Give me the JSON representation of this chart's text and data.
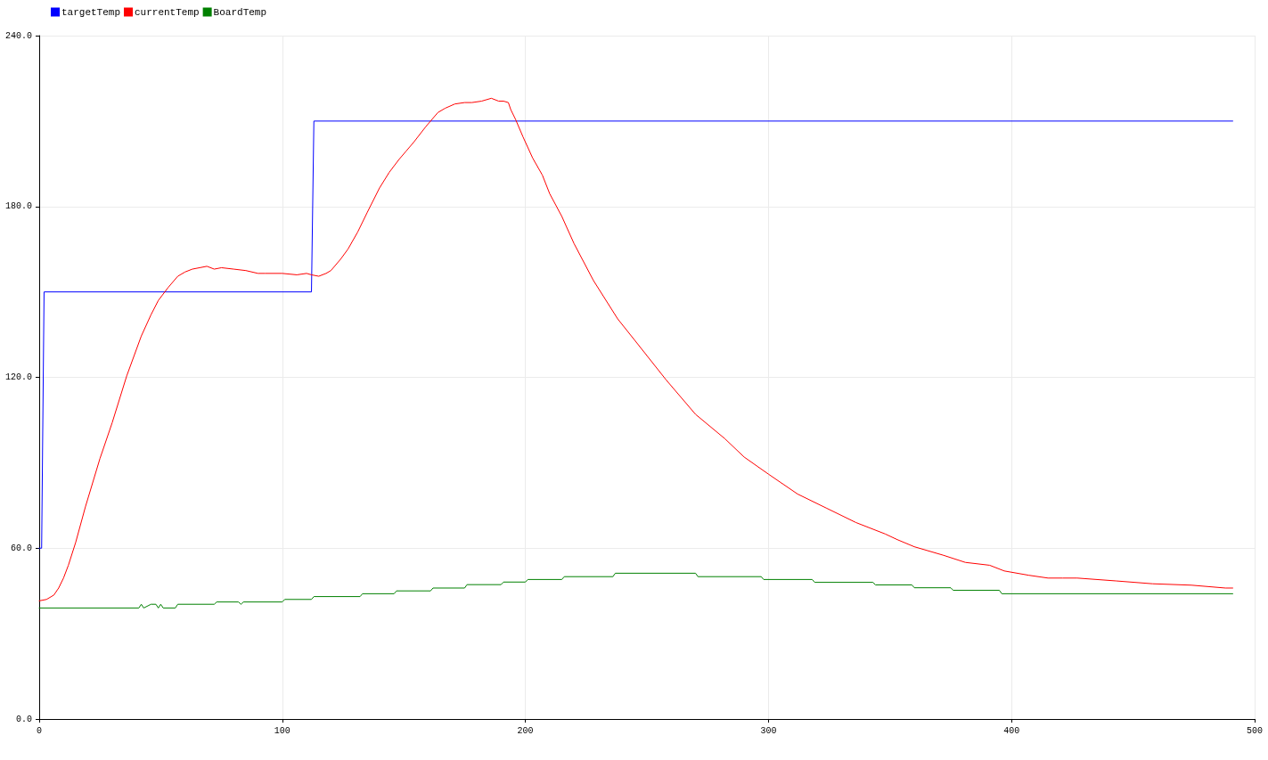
{
  "chart_data": {
    "type": "line",
    "xlim": [
      0,
      500
    ],
    "xticks": [
      0,
      100,
      200,
      300,
      400,
      500
    ],
    "ylim": [
      0,
      240
    ],
    "yticks": [
      {
        "value": 0,
        "label": "0.0"
      },
      {
        "value": 60,
        "label": "60.0"
      },
      {
        "value": 120,
        "label": "120.0"
      },
      {
        "value": 180,
        "label": "180.0"
      },
      {
        "value": 240,
        "label": "240.0"
      }
    ],
    "grid": true,
    "legend": "top left",
    "marker": "none",
    "series": [
      {
        "name": "targetTemp",
        "color": "#0000ff",
        "x": [
          0,
          1,
          2,
          112,
          113,
          491
        ],
        "values": [
          60,
          60,
          150,
          150,
          210,
          210
        ]
      },
      {
        "name": "currentTemp",
        "color": "#ff0000",
        "x": [
          0,
          3,
          6,
          8,
          10,
          12,
          15,
          19,
          25,
          30,
          36,
          42,
          46,
          49,
          53,
          57,
          60,
          63,
          66,
          69,
          72,
          75,
          80,
          85,
          90,
          93,
          100,
          106,
          110,
          112,
          115,
          118,
          120,
          124,
          127,
          131,
          135,
          140,
          144,
          148,
          151,
          154,
          159,
          164,
          167,
          171,
          175,
          178,
          182,
          186,
          189,
          191,
          193,
          194,
          196,
          199,
          203,
          207,
          210,
          215,
          220,
          228,
          238,
          245,
          258,
          270,
          282,
          290,
          300,
          312,
          324,
          336,
          348,
          353,
          360,
          372,
          381,
          391,
          397,
          407,
          415,
          421,
          427,
          443,
          458,
          474,
          488,
          491
        ],
        "values": [
          41.5,
          42,
          43.5,
          46,
          49.5,
          54,
          62,
          74.5,
          91.5,
          104,
          120.5,
          134.5,
          142,
          147,
          151.5,
          155.5,
          157,
          158,
          158.5,
          159,
          158,
          158.5,
          158,
          157.5,
          156.5,
          156.5,
          156.5,
          156,
          156.5,
          156,
          155.5,
          156.5,
          157.5,
          161.5,
          165,
          171,
          178,
          186.5,
          192,
          196.5,
          199.5,
          202.5,
          208,
          213,
          214.5,
          216,
          216.5,
          216.5,
          217,
          218,
          217,
          217,
          216.5,
          214,
          210.5,
          204.5,
          197,
          191,
          184.5,
          176.5,
          167,
          154,
          140.5,
          133,
          119,
          107,
          98.5,
          92,
          86,
          79,
          74,
          69,
          65,
          63,
          60.5,
          57.5,
          55,
          54,
          52,
          50.5,
          49.5,
          49.5,
          49.5,
          48.5,
          47.5,
          47,
          46,
          46
        ]
      },
      {
        "name": "BoardTemp",
        "color": "#008000",
        "x": [
          0,
          41,
          42,
          43,
          46,
          48,
          49,
          50,
          51,
          56,
          57,
          72,
          73,
          82,
          83,
          84,
          100,
          101,
          112,
          113,
          132,
          133,
          146,
          147,
          161,
          162,
          175,
          176,
          190,
          191,
          200,
          201,
          215,
          216,
          236,
          237,
          270,
          271,
          297,
          298,
          318,
          319,
          343,
          344,
          359,
          360,
          375,
          376,
          395,
          396,
          491
        ],
        "values": [
          39,
          39,
          40.3,
          39,
          40.3,
          40.3,
          39,
          40.3,
          39,
          39,
          40.3,
          40.3,
          41.1,
          41.1,
          40.3,
          41.1,
          41.1,
          42,
          42,
          43,
          43,
          44,
          44,
          45,
          45,
          46,
          46,
          47.2,
          47.2,
          48.1,
          48.1,
          49,
          49,
          50,
          50,
          51.2,
          51.2,
          50,
          50,
          49,
          49,
          48,
          48,
          47.1,
          47.1,
          46.1,
          46.1,
          45.2,
          45.2,
          44,
          44
        ]
      }
    ]
  }
}
